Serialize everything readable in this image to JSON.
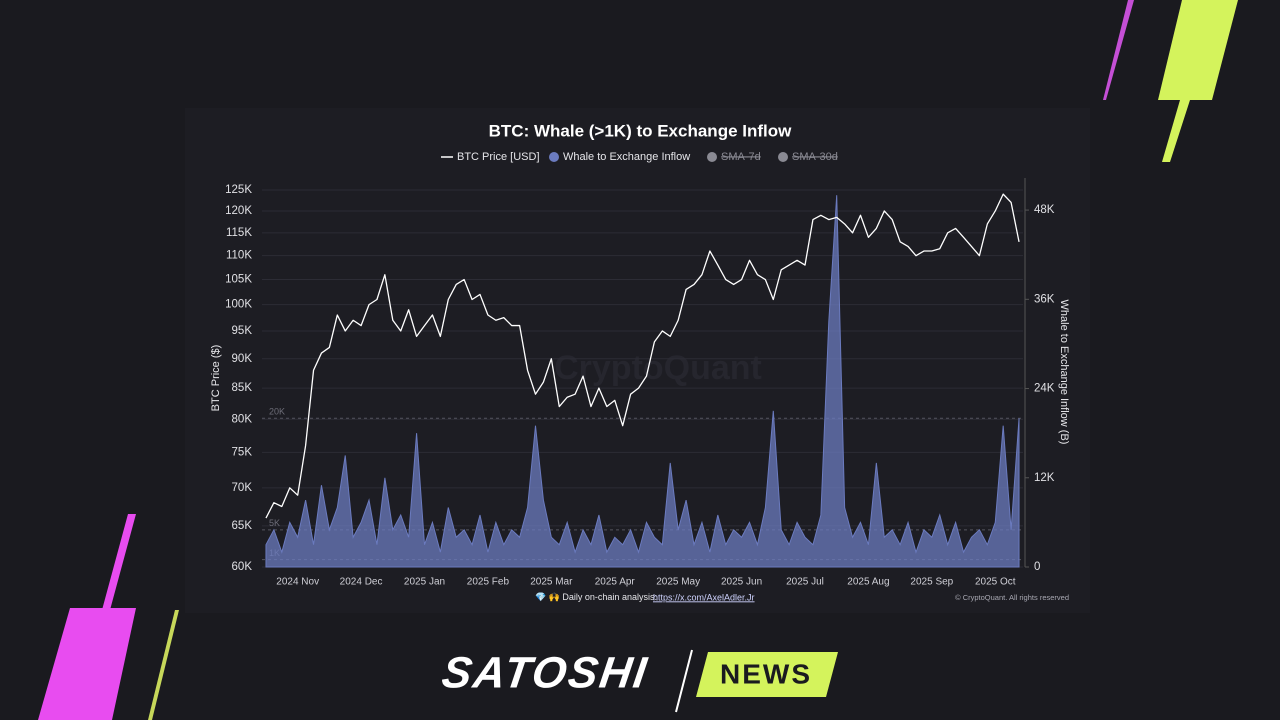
{
  "chart_data": {
    "type": "dual-axis-line-area",
    "title": "BTC: Whale (>1K) to Exchange Inflow",
    "y_label": "BTC Price ($)",
    "y2_label": "Whale to Exchange Inflow (B)",
    "watermark": "CryptoQuant",
    "log_y": true,
    "grid": true,
    "categories": [
      "",
      null,
      null,
      null,
      "2024 Nov",
      null,
      null,
      null,
      null,
      null,
      null,
      null,
      "2024 Dec",
      null,
      null,
      null,
      null,
      null,
      null,
      null,
      "2025 Jan",
      null,
      null,
      null,
      null,
      null,
      null,
      null,
      "2025 Feb",
      null,
      null,
      null,
      null,
      null,
      null,
      null,
      "2025 Mar",
      null,
      null,
      null,
      null,
      null,
      null,
      null,
      "2025 Apr",
      null,
      null,
      null,
      null,
      null,
      null,
      null,
      "2025 May",
      null,
      null,
      null,
      null,
      null,
      null,
      null,
      "2025 Jun",
      null,
      null,
      null,
      null,
      null,
      null,
      null,
      "2025 Jul",
      null,
      null,
      null,
      null,
      null,
      null,
      null,
      "2025 Aug",
      null,
      null,
      null,
      null,
      null,
      null,
      null,
      "2025 Sep",
      null,
      null,
      null,
      null,
      null,
      null,
      null,
      "2025 Oct",
      null,
      null,
      null
    ],
    "series": [
      {
        "name": "BTC Price [USD]",
        "color": "#ffffff",
        "kind": "line",
        "values": [
          66000,
          68000,
          67500,
          70000,
          69000,
          76000,
          88000,
          91000,
          92000,
          98000,
          95000,
          97000,
          96000,
          100000,
          101000,
          106000,
          97000,
          95000,
          99000,
          94000,
          96000,
          98000,
          94000,
          101000,
          104000,
          105000,
          101000,
          102000,
          98000,
          97000,
          97500,
          96000,
          96000,
          88000,
          84000,
          86000,
          90000,
          82000,
          83500,
          84000,
          87000,
          82000,
          85000,
          82000,
          83000,
          79000,
          84000,
          85000,
          87000,
          93000,
          95000,
          94000,
          97000,
          103000,
          104000,
          106000,
          111000,
          108000,
          105000,
          104000,
          105000,
          109000,
          106000,
          105000,
          101000,
          107000,
          108000,
          109000,
          108000,
          118000,
          119000,
          118000,
          118500,
          117000,
          115000,
          119000,
          114000,
          116000,
          120000,
          118000,
          113000,
          112000,
          110000,
          111000,
          111000,
          111500,
          115000,
          116000,
          114000,
          112000,
          110000,
          117000,
          120000,
          124000,
          122000,
          113000
        ]
      },
      {
        "name": "Whale to Exchange Inflow",
        "color": "#6b7bbf",
        "kind": "area",
        "axis": "y2",
        "values": [
          3000,
          5000,
          2000,
          6000,
          4000,
          9000,
          3000,
          11000,
          5000,
          8000,
          15000,
          4000,
          6000,
          9000,
          3000,
          12000,
          5000,
          7000,
          4000,
          18000,
          3000,
          6000,
          2000,
          8000,
          4000,
          5000,
          3000,
          7000,
          2000,
          6000,
          3000,
          5000,
          4000,
          8000,
          19000,
          9000,
          4000,
          3000,
          6000,
          2000,
          5000,
          3000,
          7000,
          2000,
          4000,
          3000,
          5000,
          2000,
          6000,
          4000,
          3000,
          14000,
          5000,
          9000,
          3000,
          6000,
          2000,
          7000,
          3000,
          5000,
          4000,
          6000,
          3000,
          8000,
          21000,
          5000,
          3000,
          6000,
          4000,
          3000,
          7000,
          33000,
          50000,
          8000,
          4000,
          6000,
          3000,
          14000,
          4000,
          5000,
          3000,
          6000,
          2000,
          5000,
          4000,
          7000,
          3000,
          6000,
          2000,
          4000,
          5000,
          3000,
          6000,
          19000,
          5000,
          20000
        ]
      }
    ],
    "legend_hidden": [
      "SMA-7d",
      "SMA-30d"
    ],
    "hidden_color": "#8a8a93",
    "ylim": [
      60000,
      125000
    ],
    "yticks": [
      {
        "value": 60000,
        "label": "60K"
      },
      {
        "value": 65000,
        "label": "65K"
      },
      {
        "value": 70000,
        "label": "70K"
      },
      {
        "value": 75000,
        "label": "75K"
      },
      {
        "value": 80000,
        "label": "80K"
      },
      {
        "value": 85000,
        "label": "85K"
      },
      {
        "value": 90000,
        "label": "90K"
      },
      {
        "value": 95000,
        "label": "95K"
      },
      {
        "value": 100000,
        "label": "100K"
      },
      {
        "value": 105000,
        "label": "105K"
      },
      {
        "value": 110000,
        "label": "110K"
      },
      {
        "value": 115000,
        "label": "115K"
      },
      {
        "value": 120000,
        "label": "120K"
      },
      {
        "value": 125000,
        "label": "125K"
      }
    ],
    "y2lim": [
      0,
      50700
    ],
    "y2ticks": [
      0,
      {
        "value": 12000,
        "label": "12K"
      },
      {
        "value": 24000,
        "label": "24K"
      },
      {
        "value": 36000,
        "label": "36K"
      },
      {
        "value": 48000,
        "label": "48K"
      }
    ],
    "reference_lines": [
      {
        "value": 20000,
        "label": "20K"
      },
      {
        "value": 5000,
        "label": "5K"
      },
      {
        "value": 1000,
        "label": "1K"
      }
    ],
    "footer_text": "💎 🙌 Daily on-chain analysis: ",
    "footer_link": "https://x.com/AxelAdler.Jr",
    "copyright": "© CryptoQuant. All rights reserved"
  },
  "brand": {
    "name": "SATOSHI",
    "tag": "NEWS"
  }
}
